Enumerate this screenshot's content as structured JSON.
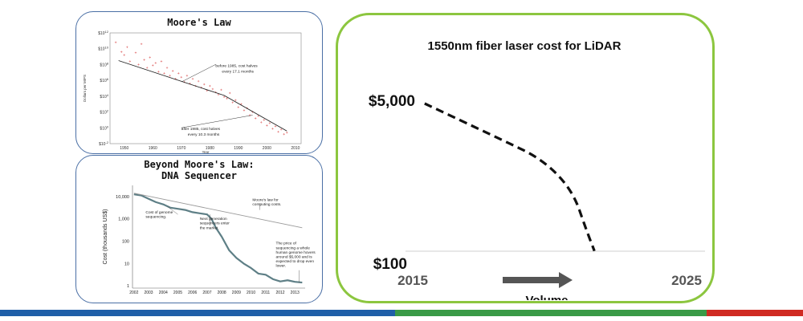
{
  "moore": {
    "title": "Moore's Law",
    "chart_data": {
      "type": "scatter",
      "title": "Moore's Law",
      "xlabel": "Year",
      "ylabel": "Dollars per MIPS",
      "x_ticks": [
        "1950",
        "1960",
        "1970",
        "1980",
        "1990",
        "2000",
        "2010"
      ],
      "y_ticks": [
        "$10^-2",
        "$10^0",
        "$10^2",
        "$10^4",
        "$10^6",
        "$10^8",
        "$10^10",
        "$10^12"
      ],
      "ylim_exp": [
        -2,
        12
      ],
      "xlim": [
        1945,
        2012
      ],
      "scale": "log",
      "trend": [
        {
          "x": 1948,
          "y_exp": 8.5
        },
        {
          "x": 1985,
          "y_exp": 4.1
        },
        {
          "x": 2007,
          "y_exp": -0.4
        }
      ],
      "points": [
        {
          "x": 1947,
          "y_exp": 10.8
        },
        {
          "x": 1949,
          "y_exp": 9.6
        },
        {
          "x": 1950,
          "y_exp": 9.2
        },
        {
          "x": 1951,
          "y_exp": 10.2
        },
        {
          "x": 1952,
          "y_exp": 8.4
        },
        {
          "x": 1954,
          "y_exp": 9.5
        },
        {
          "x": 1955,
          "y_exp": 8.0
        },
        {
          "x": 1956,
          "y_exp": 10.6
        },
        {
          "x": 1957,
          "y_exp": 8.6
        },
        {
          "x": 1958,
          "y_exp": 7.6
        },
        {
          "x": 1959,
          "y_exp": 8.9
        },
        {
          "x": 1960,
          "y_exp": 7.9
        },
        {
          "x": 1961,
          "y_exp": 8.2
        },
        {
          "x": 1962,
          "y_exp": 7.1
        },
        {
          "x": 1963,
          "y_exp": 8.4
        },
        {
          "x": 1964,
          "y_exp": 6.9
        },
        {
          "x": 1965,
          "y_exp": 7.6
        },
        {
          "x": 1966,
          "y_exp": 6.6
        },
        {
          "x": 1967,
          "y_exp": 7.2
        },
        {
          "x": 1968,
          "y_exp": 6.2
        },
        {
          "x": 1969,
          "y_exp": 6.9
        },
        {
          "x": 1970,
          "y_exp": 6.4
        },
        {
          "x": 1971,
          "y_exp": 5.8
        },
        {
          "x": 1972,
          "y_exp": 6.6
        },
        {
          "x": 1973,
          "y_exp": 5.6
        },
        {
          "x": 1974,
          "y_exp": 6.2
        },
        {
          "x": 1975,
          "y_exp": 5.3
        },
        {
          "x": 1976,
          "y_exp": 5.9
        },
        {
          "x": 1977,
          "y_exp": 5.1
        },
        {
          "x": 1978,
          "y_exp": 5.5
        },
        {
          "x": 1979,
          "y_exp": 4.7
        },
        {
          "x": 1980,
          "y_exp": 5.3
        },
        {
          "x": 1981,
          "y_exp": 4.9
        },
        {
          "x": 1982,
          "y_exp": 4.5
        },
        {
          "x": 1983,
          "y_exp": 4.2
        },
        {
          "x": 1984,
          "y_exp": 4.8
        },
        {
          "x": 1985,
          "y_exp": 3.9
        },
        {
          "x": 1986,
          "y_exp": 3.7
        },
        {
          "x": 1987,
          "y_exp": 4.4
        },
        {
          "x": 1988,
          "y_exp": 3.2
        },
        {
          "x": 1989,
          "y_exp": 3.5
        },
        {
          "x": 1990,
          "y_exp": 2.6
        },
        {
          "x": 1991,
          "y_exp": 3.0
        },
        {
          "x": 1992,
          "y_exp": 2.2
        },
        {
          "x": 1993,
          "y_exp": 2.5
        },
        {
          "x": 1994,
          "y_exp": 1.6
        },
        {
          "x": 1995,
          "y_exp": 2.0
        },
        {
          "x": 1996,
          "y_exp": 1.2
        },
        {
          "x": 1997,
          "y_exp": 1.5
        },
        {
          "x": 1998,
          "y_exp": 0.7
        },
        {
          "x": 1999,
          "y_exp": 1.0
        },
        {
          "x": 2000,
          "y_exp": 0.3
        },
        {
          "x": 2001,
          "y_exp": 0.6
        },
        {
          "x": 2002,
          "y_exp": -0.1
        },
        {
          "x": 2003,
          "y_exp": 0.2
        },
        {
          "x": 2004,
          "y_exp": -0.5
        },
        {
          "x": 2005,
          "y_exp": -0.2
        },
        {
          "x": 2006,
          "y_exp": -0.8
        },
        {
          "x": 2007,
          "y_exp": -0.6
        }
      ],
      "annotations": [
        {
          "lines": [
            "before 1985, cost halves",
            "every 17.1 months"
          ],
          "x": 1982,
          "y_exp": 7.7,
          "arrow_to": {
            "x": 1970,
            "y_exp": 5.8
          }
        },
        {
          "lines": [
            "after 1985, cost halves",
            "every 10.3 months"
          ],
          "x": 1970,
          "y_exp": -0.3,
          "arrow_to": {
            "x": 1995,
            "y_exp": 1.6
          }
        }
      ],
      "colors": {
        "points": "#e06a6a",
        "trend": "#222222"
      }
    }
  },
  "dna": {
    "title_line1": "Beyond Moore's Law:",
    "title_line2": "DNA Sequencer",
    "chart_data": {
      "type": "line",
      "xlabel": "",
      "ylabel": "Cost (thousands US$)",
      "scale": "log",
      "x_ticks": [
        "2002",
        "2003",
        "2004",
        "2005",
        "2006",
        "2007",
        "2008",
        "2009",
        "2010",
        "2011",
        "2012",
        "2013"
      ],
      "y_ticks": [
        {
          "exp": 4,
          "label": "10,000"
        },
        {
          "exp": 3,
          "label": "1,000"
        },
        {
          "exp": 2,
          "label": "100"
        },
        {
          "exp": 1,
          "label": "10"
        },
        {
          "exp": 0,
          "label": "1"
        }
      ],
      "xlim": [
        2001.9,
        2013.7
      ],
      "ylim_exp": [
        -0.1,
        4.5
      ],
      "series": [
        {
          "name": "Cost of genome sequencing",
          "color": "#5e7f86",
          "width": 2.2,
          "points": [
            {
              "x": 2002,
              "y_exp": 4.1
            },
            {
              "x": 2002.5,
              "y_exp": 4.05
            },
            {
              "x": 2003,
              "y_exp": 3.9
            },
            {
              "x": 2003.5,
              "y_exp": 3.75
            },
            {
              "x": 2004,
              "y_exp": 3.65
            },
            {
              "x": 2004.5,
              "y_exp": 3.5
            },
            {
              "x": 2005,
              "y_exp": 3.45
            },
            {
              "x": 2005.5,
              "y_exp": 3.4
            },
            {
              "x": 2006,
              "y_exp": 3.3
            },
            {
              "x": 2006.5,
              "y_exp": 3.25
            },
            {
              "x": 2007,
              "y_exp": 3.2
            },
            {
              "x": 2007.3,
              "y_exp": 3.0
            },
            {
              "x": 2007.6,
              "y_exp": 2.6
            },
            {
              "x": 2008,
              "y_exp": 2.2
            },
            {
              "x": 2008.5,
              "y_exp": 1.6
            },
            {
              "x": 2009,
              "y_exp": 1.25
            },
            {
              "x": 2009.5,
              "y_exp": 1.0
            },
            {
              "x": 2010,
              "y_exp": 0.8
            },
            {
              "x": 2010.5,
              "y_exp": 0.55
            },
            {
              "x": 2011,
              "y_exp": 0.5
            },
            {
              "x": 2011.5,
              "y_exp": 0.3
            },
            {
              "x": 2012,
              "y_exp": 0.2
            },
            {
              "x": 2012.5,
              "y_exp": 0.25
            },
            {
              "x": 2013,
              "y_exp": 0.18
            },
            {
              "x": 2013.5,
              "y_exp": 0.15
            }
          ]
        },
        {
          "name": "Moore's law for computing costs",
          "color": "#9a9a9a",
          "width": 0.9,
          "points": [
            {
              "x": 2002,
              "y_exp": 4.15
            },
            {
              "x": 2013.5,
              "y_exp": 2.6
            }
          ]
        }
      ],
      "annotations": [
        {
          "lines": [
            "Cost of genome",
            "sequencing."
          ],
          "x": 2002.8,
          "y_exp": 3.25
        },
        {
          "lines": [
            "Moore's law for",
            "computing costs."
          ],
          "x": 2010.1,
          "y_exp": 3.8
        },
        {
          "lines": [
            "Next generation",
            "sequencers enter",
            "the market."
          ],
          "x": 2006.5,
          "y_exp": 2.95
        },
        {
          "lines": [
            "The price of",
            "sequencing a whole",
            "human genome hovers",
            "around $5,000 and is",
            "expected to drop even",
            "lower."
          ],
          "x": 2011.7,
          "y_exp": 1.85
        }
      ]
    }
  },
  "lidar": {
    "chart_data": {
      "type": "line",
      "title": "1550nm fiber laser cost for LiDAR",
      "xlabel": "Volume",
      "x_ticks": [
        "2015",
        "2025"
      ],
      "y_ticks": [
        "$5,000",
        "$100"
      ],
      "xlim": [
        2015,
        2025
      ],
      "series": [
        {
          "name": "",
          "style": "dashed",
          "color": "#111111",
          "points": [
            {
              "x": 2015.2,
              "y": 5000
            },
            {
              "x": 2018.0,
              "y": 3900
            },
            {
              "x": 2019.5,
              "y": 3300
            },
            {
              "x": 2020.6,
              "y": 2350
            },
            {
              "x": 2021.1,
              "y": 1150
            },
            {
              "x": 2021.4,
              "y": 500
            }
          ]
        }
      ],
      "ylim": [
        100,
        5000
      ]
    }
  },
  "bottom_bar_colors": [
    "#1f5fa8",
    "#3a9a47",
    "#d02a22"
  ]
}
